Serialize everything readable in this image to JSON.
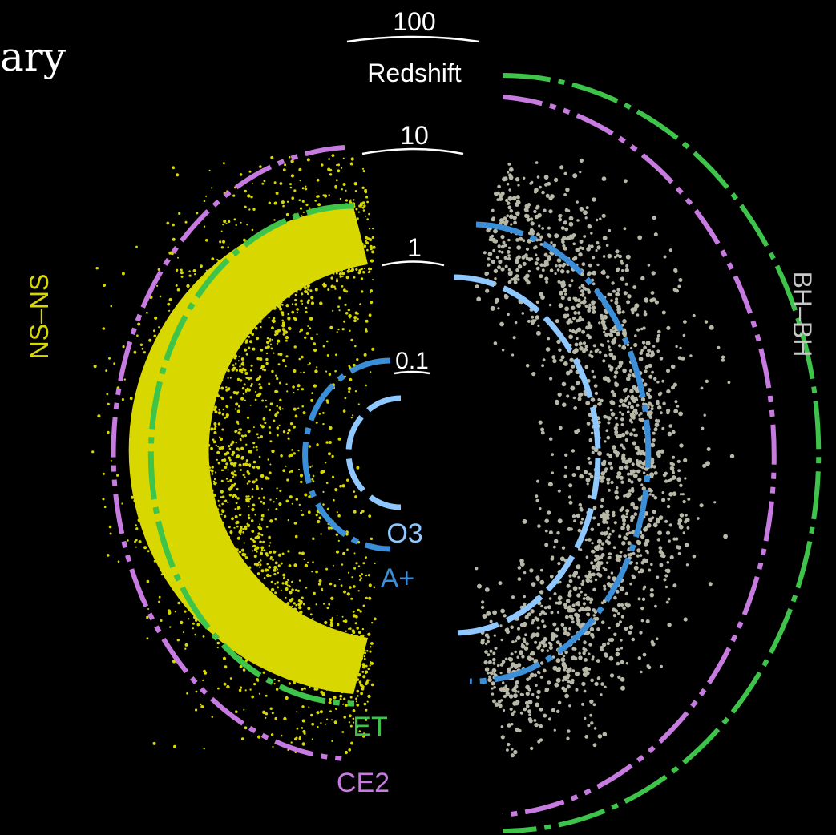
{
  "page_title_fragment": "ary",
  "redshift_axis": {
    "title": "Redshift",
    "ticks": [
      "100",
      "10",
      "1",
      "0.1"
    ]
  },
  "populations": {
    "left": {
      "label": "NS–NS",
      "color": "#d8d800"
    },
    "right": {
      "label": "BH–BH",
      "color": "#b8b8a8"
    }
  },
  "detectors": [
    {
      "key": "o3",
      "label": "O3",
      "color": "#8ec8ff"
    },
    {
      "key": "aplus",
      "label": "A+",
      "color": "#3b8fd9"
    },
    {
      "key": "et",
      "label": "ET",
      "color": "#3ec44a"
    },
    {
      "key": "ce2",
      "label": "CE2",
      "color": "#c77be0"
    }
  ],
  "colors": {
    "background": "#000000",
    "tick_text": "#ffffff"
  }
}
